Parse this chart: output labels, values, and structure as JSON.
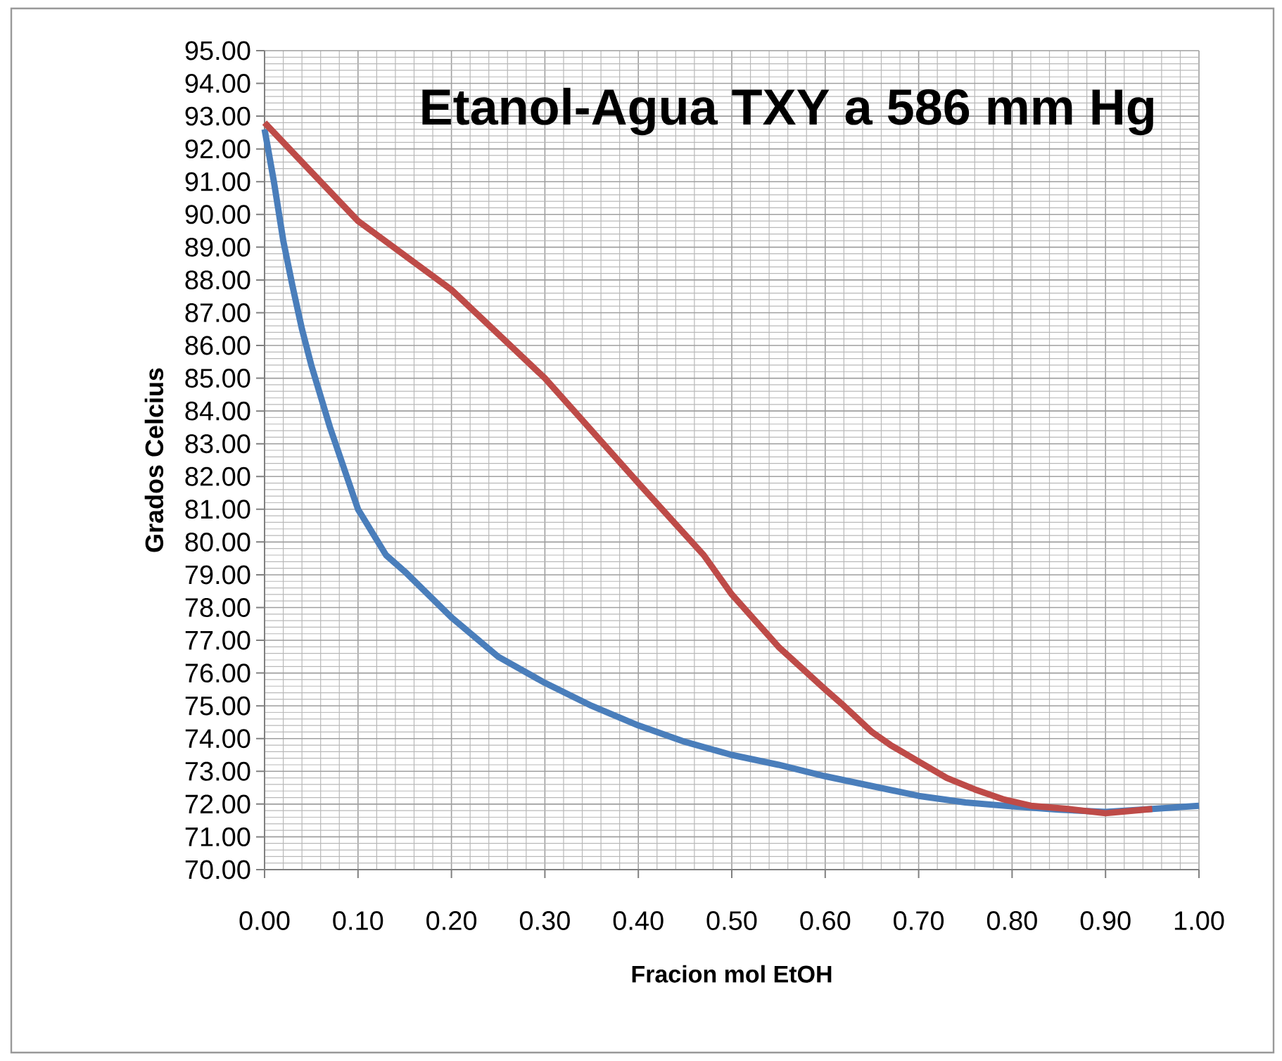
{
  "chart_data": {
    "type": "line",
    "title": "Etanol-Agua TXY a 586 mm Hg",
    "xlabel": "Fracion mol EtOH",
    "ylabel": "Grados Celcius",
    "xlim": [
      0,
      1
    ],
    "ylim": [
      70,
      95
    ],
    "xticks": [
      {
        "value": 0,
        "label": "0.00"
      },
      {
        "value": 0.1,
        "label": "0.10"
      },
      {
        "value": 0.2,
        "label": "0.20"
      },
      {
        "value": 0.3,
        "label": "0.30"
      },
      {
        "value": 0.4,
        "label": "0.40"
      },
      {
        "value": 0.5,
        "label": "0.50"
      },
      {
        "value": 0.6,
        "label": "0.60"
      },
      {
        "value": 0.7,
        "label": "0.70"
      },
      {
        "value": 0.8,
        "label": "0.80"
      },
      {
        "value": 0.9,
        "label": "0.90"
      },
      {
        "value": 1,
        "label": "1.00"
      }
    ],
    "yticks": [
      {
        "value": 70,
        "label": "70.00"
      },
      {
        "value": 71,
        "label": "71.00"
      },
      {
        "value": 72,
        "label": "72.00"
      },
      {
        "value": 73,
        "label": "73.00"
      },
      {
        "value": 74,
        "label": "74.00"
      },
      {
        "value": 75,
        "label": "75.00"
      },
      {
        "value": 76,
        "label": "76.00"
      },
      {
        "value": 77,
        "label": "77.00"
      },
      {
        "value": 78,
        "label": "78.00"
      },
      {
        "value": 79,
        "label": "79.00"
      },
      {
        "value": 80,
        "label": "80.00"
      },
      {
        "value": 81,
        "label": "81.00"
      },
      {
        "value": 82,
        "label": "82.00"
      },
      {
        "value": 83,
        "label": "83.00"
      },
      {
        "value": 84,
        "label": "84.00"
      },
      {
        "value": 85,
        "label": "85.00"
      },
      {
        "value": 86,
        "label": "86.00"
      },
      {
        "value": 87,
        "label": "87.00"
      },
      {
        "value": 88,
        "label": "88.00"
      },
      {
        "value": 89,
        "label": "89.00"
      },
      {
        "value": 90,
        "label": "90.00"
      },
      {
        "value": 91,
        "label": "91.00"
      },
      {
        "value": 92,
        "label": "92.00"
      },
      {
        "value": 93,
        "label": "93.00"
      },
      {
        "value": 94,
        "label": "94.00"
      },
      {
        "value": 95,
        "label": "95.00"
      }
    ],
    "grid": true,
    "series": [
      {
        "color": "#4a7ebb",
        "x": [
          0,
          0.01,
          0.02,
          0.03,
          0.04,
          0.05,
          0.07,
          0.1,
          0.13,
          0.15,
          0.2,
          0.25,
          0.3,
          0.35,
          0.4,
          0.45,
          0.5,
          0.55,
          0.6,
          0.65,
          0.7,
          0.75,
          0.8,
          0.85,
          0.9,
          0.95,
          1
        ],
        "values": [
          92.6,
          91.0,
          89.2,
          87.8,
          86.5,
          85.4,
          83.5,
          81.0,
          79.6,
          79.1,
          77.7,
          76.5,
          75.7,
          75.0,
          74.4,
          73.9,
          73.5,
          73.2,
          72.85,
          72.55,
          72.25,
          72.05,
          71.93,
          71.83,
          71.76,
          71.85,
          71.95
        ]
      },
      {
        "color": "#be4b48",
        "x": [
          0,
          0.1,
          0.2,
          0.3,
          0.4,
          0.47,
          0.5,
          0.55,
          0.6,
          0.62,
          0.65,
          0.67,
          0.7,
          0.73,
          0.76,
          0.79,
          0.82,
          0.86,
          0.9,
          0.95
        ],
        "values": [
          92.8,
          89.8,
          87.7,
          85.0,
          81.8,
          79.6,
          78.4,
          76.8,
          75.5,
          75.0,
          74.2,
          73.8,
          73.3,
          72.8,
          72.45,
          72.15,
          71.95,
          71.85,
          71.72,
          71.85
        ]
      }
    ]
  }
}
